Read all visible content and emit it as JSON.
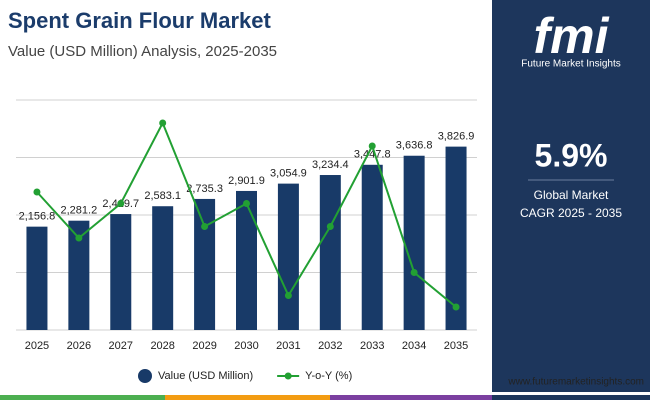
{
  "chart_data": {
    "type": "bar",
    "title": "Spent Grain Flour Market",
    "subtitle": "Value (USD Million) Analysis, 2025-2035",
    "categories": [
      "2025",
      "2026",
      "2027",
      "2028",
      "2029",
      "2030",
      "2031",
      "2032",
      "2033",
      "2034",
      "2035"
    ],
    "series": [
      {
        "name": "Value (USD Million)",
        "color": "#183a68",
        "type": "bar",
        "values": [
          2156.8,
          2281.2,
          2419.7,
          2583.1,
          2735.3,
          2901.9,
          3054.9,
          3234.4,
          3447.8,
          3636.8,
          3826.9
        ],
        "value_labels": [
          "2,156.8",
          "2,281.2",
          "2,419.7",
          "2,583.1",
          "2,735.3",
          "2,901.9",
          "3,054.9",
          "3,234.4",
          "3,447.8",
          "3,636.8",
          "3,826.9"
        ]
      },
      {
        "name": "Y-o-Y (%)",
        "color": "#22a033",
        "type": "line",
        "axis": "y2",
        "values": [
          6.2,
          5.8,
          6.1,
          6.8,
          5.9,
          6.1,
          5.3,
          5.9,
          6.6,
          5.5,
          5.2
        ]
      }
    ],
    "ylim": [
      0,
      4800
    ],
    "yticks": [
      0,
      1200,
      2400,
      3600,
      4800
    ],
    "y2lim": [
      5,
      7
    ],
    "grid": true,
    "legend": "bottom"
  },
  "panel": {
    "logo": "fmi",
    "logo_sub": "Future Market Insights",
    "cagr": "5.9%",
    "cagr_label": "Global Market",
    "cagr_period": "CAGR 2025 - 2035"
  },
  "footer": "www.futuremarketinsights.com"
}
